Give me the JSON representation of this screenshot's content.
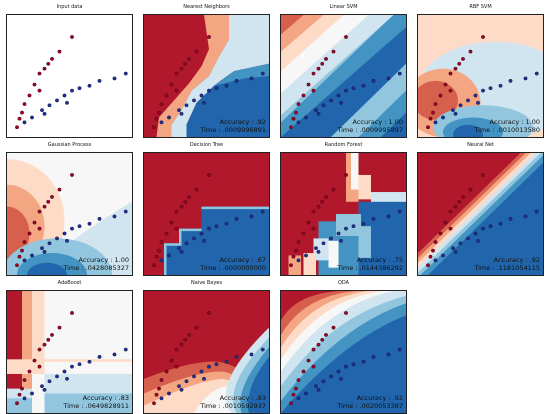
{
  "figure": {
    "accuracy_prefix": "Accuracy : ",
    "time_prefix": "Time : "
  },
  "chart_data": [
    {
      "type": "scatter",
      "title": "Input data",
      "regions": "none",
      "accuracy": "",
      "time": ""
    },
    {
      "type": "scatter",
      "title": "Nearest Neighbors",
      "regions": "knn",
      "accuracy": ".92",
      "time": ".0009996891"
    },
    {
      "type": "scatter",
      "title": "Linear SVM",
      "regions": "linear",
      "accuracy": "1.00",
      "time": ".0009995897"
    },
    {
      "type": "scatter",
      "title": "RBF SVM",
      "regions": "rbf",
      "accuracy": "1.00",
      "time": ".0010013580"
    },
    {
      "type": "scatter",
      "title": "Gaussian Process",
      "regions": "gp",
      "accuracy": "1.00",
      "time": ".0428085327"
    },
    {
      "type": "scatter",
      "title": "Decision Tree",
      "regions": "tree",
      "accuracy": ".67",
      "time": ".0000000000"
    },
    {
      "type": "scatter",
      "title": "Random Forest",
      "regions": "forest",
      "accuracy": ".75",
      "time": ".0144386292"
    },
    {
      "type": "scatter",
      "title": "Neural Net",
      "regions": "nn",
      "accuracy": ".92",
      "time": ".1181054115"
    },
    {
      "type": "scatter",
      "title": "AdaBoost",
      "regions": "ada",
      "accuracy": ".83",
      "time": ".0649828911"
    },
    {
      "type": "scatter",
      "title": "Naive Bayes",
      "regions": "nb",
      "accuracy": ".83",
      "time": ".0010592937"
    },
    {
      "type": "scatter",
      "title": "QDA",
      "regions": "qda",
      "accuracy": ".92",
      "time": ".0020053387"
    }
  ],
  "points": {
    "class_0": [
      [
        0.08,
        0.92
      ],
      [
        0.1,
        0.85
      ],
      [
        0.12,
        0.8
      ],
      [
        0.14,
        0.73
      ],
      [
        0.18,
        0.66
      ],
      [
        0.22,
        0.57
      ],
      [
        0.26,
        0.48
      ],
      [
        0.3,
        0.44
      ],
      [
        0.36,
        0.36
      ],
      [
        0.42,
        0.3
      ],
      [
        0.52,
        0.18
      ],
      [
        0.26,
        0.62
      ],
      [
        0.33,
        0.4
      ]
    ],
    "class_1": [
      [
        0.14,
        0.88
      ],
      [
        0.2,
        0.84
      ],
      [
        0.28,
        0.78
      ],
      [
        0.34,
        0.74
      ],
      [
        0.4,
        0.7
      ],
      [
        0.46,
        0.66
      ],
      [
        0.52,
        0.62
      ],
      [
        0.58,
        0.6
      ],
      [
        0.66,
        0.58
      ],
      [
        0.74,
        0.54
      ],
      [
        0.86,
        0.52
      ],
      [
        0.3,
        0.81
      ],
      [
        0.48,
        0.72
      ],
      [
        0.95,
        0.48
      ]
    ]
  },
  "colors": {
    "class_0": "#a50026",
    "class_1": "#1f2f9e",
    "red_strong": "#b2182b",
    "red_mid": "#d6604d",
    "red_light": "#f4a582",
    "red_pale": "#fddbc7",
    "neutral": "#f7f7f7",
    "blue_pale": "#d1e5f0",
    "blue_light": "#92c5de",
    "blue_mid": "#4393c3",
    "blue_strong": "#2166ac"
  }
}
